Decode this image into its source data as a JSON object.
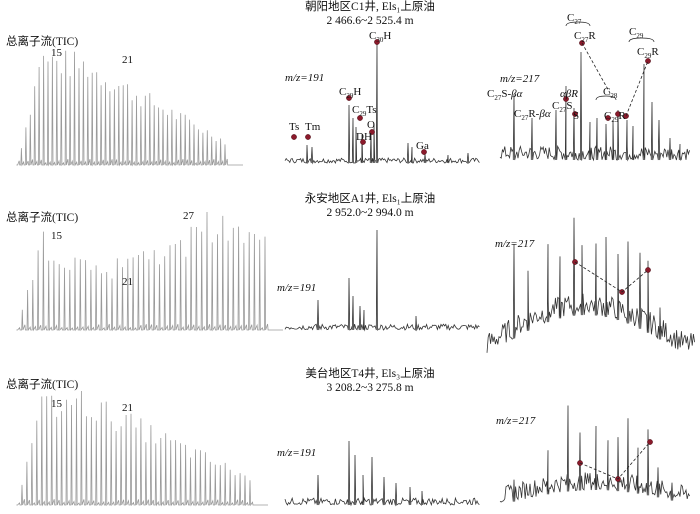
{
  "panels": [
    {
      "title_line1": "朝阳地区C1井, Els₁上原油",
      "title_line2": "2 466.6~2 525.4 m",
      "tic_label": "总离子流(TIC)",
      "tic_peak_labels": [
        "15",
        "21"
      ],
      "m191_label": "m/z=191",
      "m217_label": "m/z=217",
      "m191_peaks": [
        "Ts",
        "Tm",
        "C29H",
        "C29Ts",
        "O",
        "DH",
        "C30H",
        "Ga"
      ],
      "m217_peaks": [
        "C27S-βα",
        "C27R-βα",
        "C27S",
        "αβR",
        "S",
        "C27",
        "C27R",
        "C28",
        "C29",
        "C29R"
      ]
    },
    {
      "title_line1": "永安地区A1井, Els₁上原油",
      "title_line2": "2 952.0~2 994.0 m",
      "tic_label": "总离子流(TIC)",
      "tic_peak_labels": [
        "15",
        "21",
        "27"
      ],
      "m191_label": "m/z=191",
      "m217_label": "m/z=217"
    },
    {
      "title_line1": "美台地区T4井, Els₃上原油",
      "title_line2": "3 208.2~3 275.8 m",
      "tic_label": "总离子流(TIC)",
      "tic_peak_labels": [
        "15",
        "21"
      ],
      "m191_label": "m/z=191",
      "m217_label": "m/z=217"
    }
  ],
  "colors": {
    "marker": "#8b1a2b",
    "tic_trace": "#9a9a9a",
    "ms_trace": "#333333"
  }
}
